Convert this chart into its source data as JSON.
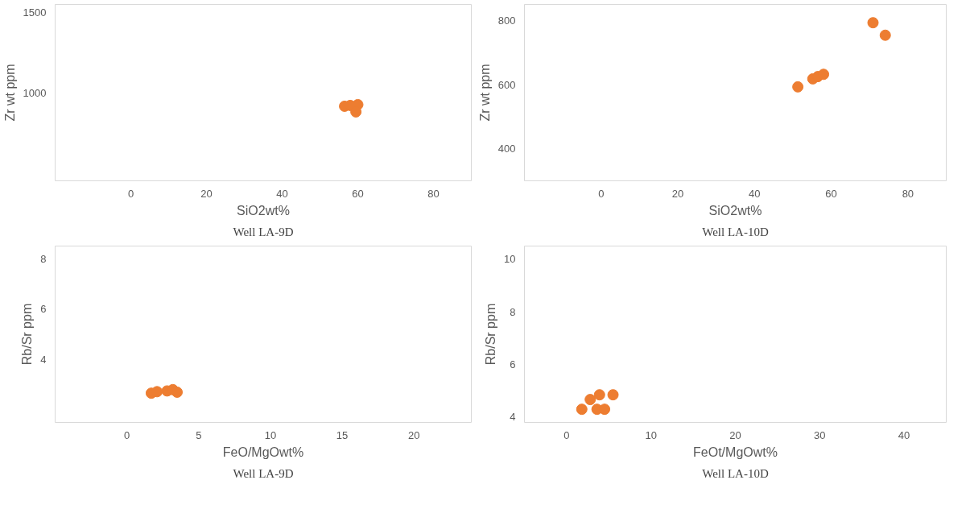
{
  "chart_data": [
    {
      "type": "scatter",
      "xlabel": "SiO2wt%",
      "ylabel": "Zr wt ppm",
      "annotations": [
        "Well LA-9D"
      ],
      "x": [
        56.5,
        58,
        60,
        59.5
      ],
      "series": [
        {
          "color": "#ed7d31",
          "values": [
            915,
            920,
            925,
            880
          ]
        }
      ],
      "xlim": [
        -20,
        90
      ],
      "ylim": [
        450,
        1550
      ],
      "xticks": [
        0,
        20,
        40,
        60,
        80
      ],
      "yticks": [
        1000,
        1500
      ],
      "grid": false,
      "marker": "circle"
    },
    {
      "type": "scatter",
      "xlabel": "SiO2wt%",
      "ylabel": "Zr wt ppm",
      "annotations": [
        "Well LA-10D"
      ],
      "x": [
        51.3,
        55.2,
        56.5,
        58,
        70.9,
        74.1
      ],
      "series": [
        {
          "color": "#ed7d31",
          "values": [
            593,
            618,
            625,
            632,
            793,
            754
          ]
        }
      ],
      "xlim": [
        -20,
        90
      ],
      "ylim": [
        300,
        850
      ],
      "xticks": [
        0,
        20,
        40,
        60,
        80
      ],
      "yticks": [
        400,
        600,
        800
      ],
      "grid": false,
      "marker": "circle"
    },
    {
      "type": "scatter",
      "xlabel": "FeO/MgOwt%",
      "ylabel": "Rb/Sr ppm",
      "annotations": [
        "Well LA-9D"
      ],
      "x": [
        1.7,
        2.1,
        2.8,
        3.2,
        3.5
      ],
      "series": [
        {
          "color": "#ed7d31",
          "values": [
            2.66,
            2.72,
            2.75,
            2.8,
            2.7
          ]
        }
      ],
      "xlim": [
        -5,
        24
      ],
      "ylim": [
        1.5,
        8.5
      ],
      "xticks": [
        0,
        5,
        10,
        15,
        20
      ],
      "yticks": [
        4,
        6,
        8
      ],
      "grid": false,
      "marker": "circle"
    },
    {
      "type": "scatter",
      "xlabel": "FeOt/MgOwt%",
      "ylabel": "Rb/Sr ppm",
      "annotations": [
        "Well LA-10D"
      ],
      "x": [
        1.8,
        2.8,
        3.6,
        3.9,
        4.5,
        5.5
      ],
      "series": [
        {
          "color": "#ed7d31",
          "values": [
            4.3,
            4.67,
            4.3,
            4.85,
            4.3,
            4.85
          ]
        }
      ],
      "xlim": [
        -5,
        45
      ],
      "ylim": [
        3.8,
        10.5
      ],
      "xticks": [
        0,
        10,
        20,
        30,
        40
      ],
      "yticks": [
        4,
        6,
        8,
        10
      ],
      "grid": false,
      "marker": "circle"
    }
  ]
}
